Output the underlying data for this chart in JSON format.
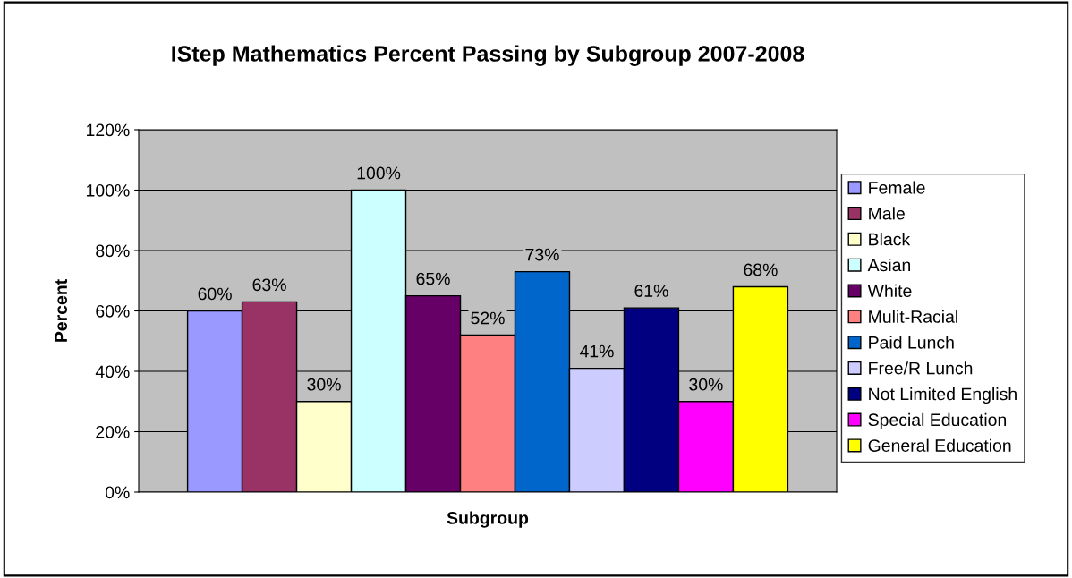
{
  "chart_data": {
    "type": "bar",
    "title": "IStep Mathematics Percent Passing by Subgroup 2007-2008",
    "xlabel": "Subgroup",
    "ylabel": "Percent",
    "categories": [
      null
    ],
    "series": [
      {
        "name": "Female",
        "color": "#9999ff",
        "values": [
          60
        ],
        "value_labels": [
          "60%"
        ]
      },
      {
        "name": "Male",
        "color": "#993366",
        "values": [
          63
        ],
        "value_labels": [
          "63%"
        ]
      },
      {
        "name": "Black",
        "color": "#ffffcc",
        "values": [
          30
        ],
        "value_labels": [
          "30%"
        ]
      },
      {
        "name": "Asian",
        "color": "#ccffff",
        "values": [
          100
        ],
        "value_labels": [
          "100%"
        ]
      },
      {
        "name": "White",
        "color": "#660066",
        "values": [
          65
        ],
        "value_labels": [
          "65%"
        ]
      },
      {
        "name": "Mulit-Racial",
        "color": "#ff8080",
        "values": [
          52
        ],
        "value_labels": [
          "52%"
        ]
      },
      {
        "name": "Paid Lunch",
        "color": "#0066cc",
        "values": [
          73
        ],
        "value_labels": [
          "73%"
        ]
      },
      {
        "name": "Free/R Lunch",
        "color": "#ccccff",
        "values": [
          41
        ],
        "value_labels": [
          "41%"
        ]
      },
      {
        "name": "Not Limited English",
        "color": "#000080",
        "values": [
          61
        ],
        "value_labels": [
          "61%"
        ]
      },
      {
        "name": "Special Education",
        "color": "#ff00ff",
        "values": [
          30
        ],
        "value_labels": [
          "30%"
        ]
      },
      {
        "name": "General Education",
        "color": "#ffff00",
        "values": [
          68
        ],
        "value_labels": [
          "68%"
        ]
      }
    ],
    "ylim": [
      0,
      120
    ],
    "yticks": [
      {
        "value": 0,
        "label": "0%"
      },
      {
        "value": 20,
        "label": "20%"
      },
      {
        "value": 40,
        "label": "40%"
      },
      {
        "value": 60,
        "label": "60%"
      },
      {
        "value": 80,
        "label": "80%"
      },
      {
        "value": 100,
        "label": "100%"
      },
      {
        "value": 120,
        "label": "120%"
      }
    ],
    "grid": "y",
    "legend": "right"
  }
}
